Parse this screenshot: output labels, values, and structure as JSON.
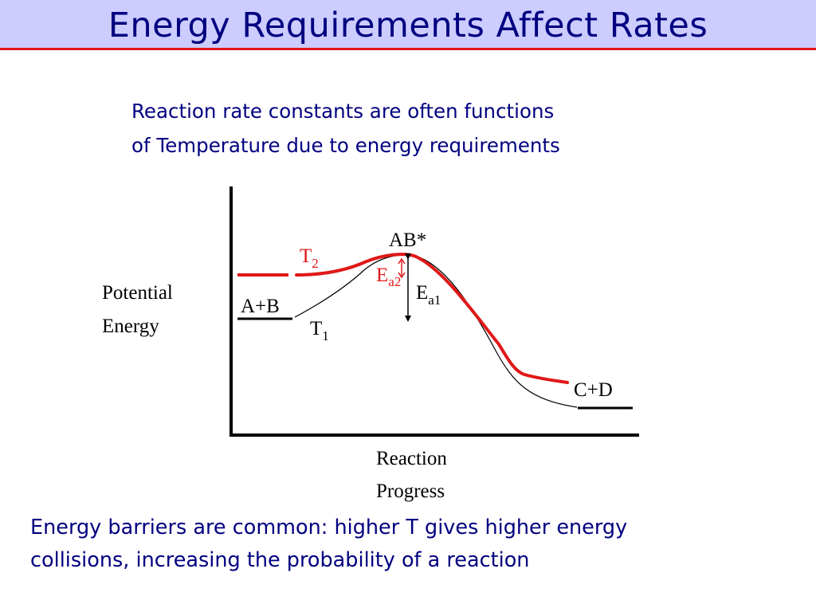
{
  "slide": {
    "title": "Energy Requirements Affect Rates",
    "subtitle_lines": [
      "Reaction rate constants are often functions",
      "of Temperature due to energy requirements"
    ],
    "footer_lines": [
      "Energy barriers are common: higher T gives higher energy",
      "collisions, increasing the probability of a reaction"
    ],
    "colors": {
      "header_band": "#ccccff",
      "title_text": "#000080",
      "title_underline": "#e01818",
      "curve_T2": "#e01818",
      "curve_T1": "#000000"
    }
  },
  "diagram": {
    "y_axis_label_lines": [
      "Potential",
      "Energy"
    ],
    "x_axis_label_lines": [
      "Reaction",
      "Progress"
    ],
    "reactants_label": "A+B",
    "products_label": "C+D",
    "transition_state_label": "AB*",
    "curve_T2": {
      "base": "T",
      "sub": "2"
    },
    "curve_T1": {
      "base": "T",
      "sub": "1"
    },
    "activation_energy_2": {
      "base": "E",
      "sub": "a2"
    },
    "activation_energy_1": {
      "base": "E",
      "sub": "a1"
    }
  }
}
